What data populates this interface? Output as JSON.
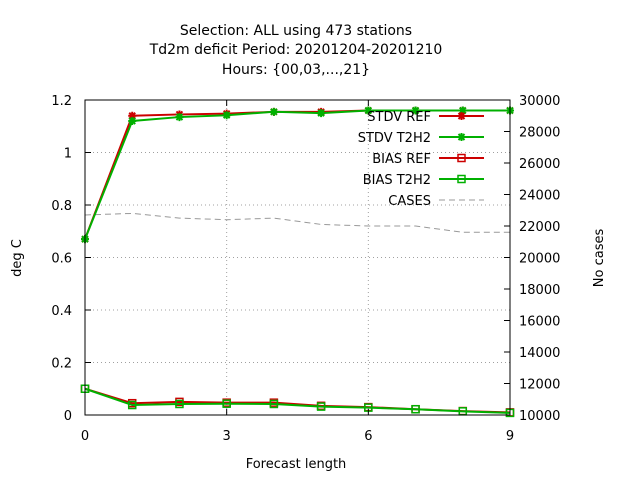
{
  "chart_data": {
    "type": "line",
    "title_lines": [
      "Selection: ALL using   473 stations",
      "Td2m deficit   Period: 20201204-20201210",
      "Hours: {00,03,...,21}"
    ],
    "xlabel": "Forecast length",
    "ylabel": "deg C",
    "y2label": "No cases",
    "xlim": [
      0,
      9
    ],
    "ylim": [
      0,
      1.2
    ],
    "y2lim": [
      10000,
      30000
    ],
    "xticks": [
      0,
      3,
      6,
      9
    ],
    "yticks": [
      0,
      0.2,
      0.4,
      0.6,
      0.8,
      1,
      1.2
    ],
    "y2ticks": [
      10000,
      12000,
      14000,
      16000,
      18000,
      20000,
      22000,
      24000,
      26000,
      28000,
      30000
    ],
    "grid": true,
    "legend_position": "top-right",
    "x": [
      0,
      1,
      2,
      3,
      4,
      5,
      6,
      7,
      8,
      9
    ],
    "series": [
      {
        "name": "STDV REF",
        "axis": "y1",
        "color": "#cc0000",
        "marker": "star",
        "dash": false,
        "values": [
          0.67,
          1.14,
          1.145,
          1.148,
          1.155,
          1.155,
          1.16,
          1.16,
          1.16,
          1.16
        ]
      },
      {
        "name": "STDV T2H2",
        "axis": "y1",
        "color": "#00b000",
        "marker": "star",
        "dash": false,
        "values": [
          0.67,
          1.12,
          1.135,
          1.142,
          1.155,
          1.15,
          1.16,
          1.16,
          1.16,
          1.16
        ]
      },
      {
        "name": "BIAS REF",
        "axis": "y1",
        "color": "#cc0000",
        "marker": "square",
        "dash": false,
        "values": [
          0.1,
          0.045,
          0.05,
          0.047,
          0.047,
          0.035,
          0.03,
          0.022,
          0.015,
          0.01
        ]
      },
      {
        "name": "BIAS T2H2",
        "axis": "y1",
        "color": "#00b000",
        "marker": "square",
        "dash": false,
        "values": [
          0.1,
          0.038,
          0.042,
          0.043,
          0.042,
          0.032,
          0.028,
          0.022,
          0.014,
          0.008
        ]
      },
      {
        "name": "CASES",
        "axis": "y2",
        "color": "#999999",
        "marker": "none",
        "dash": true,
        "values": [
          22700,
          22800,
          22500,
          22400,
          22500,
          22100,
          22000,
          22000,
          21600,
          21600
        ]
      }
    ]
  }
}
